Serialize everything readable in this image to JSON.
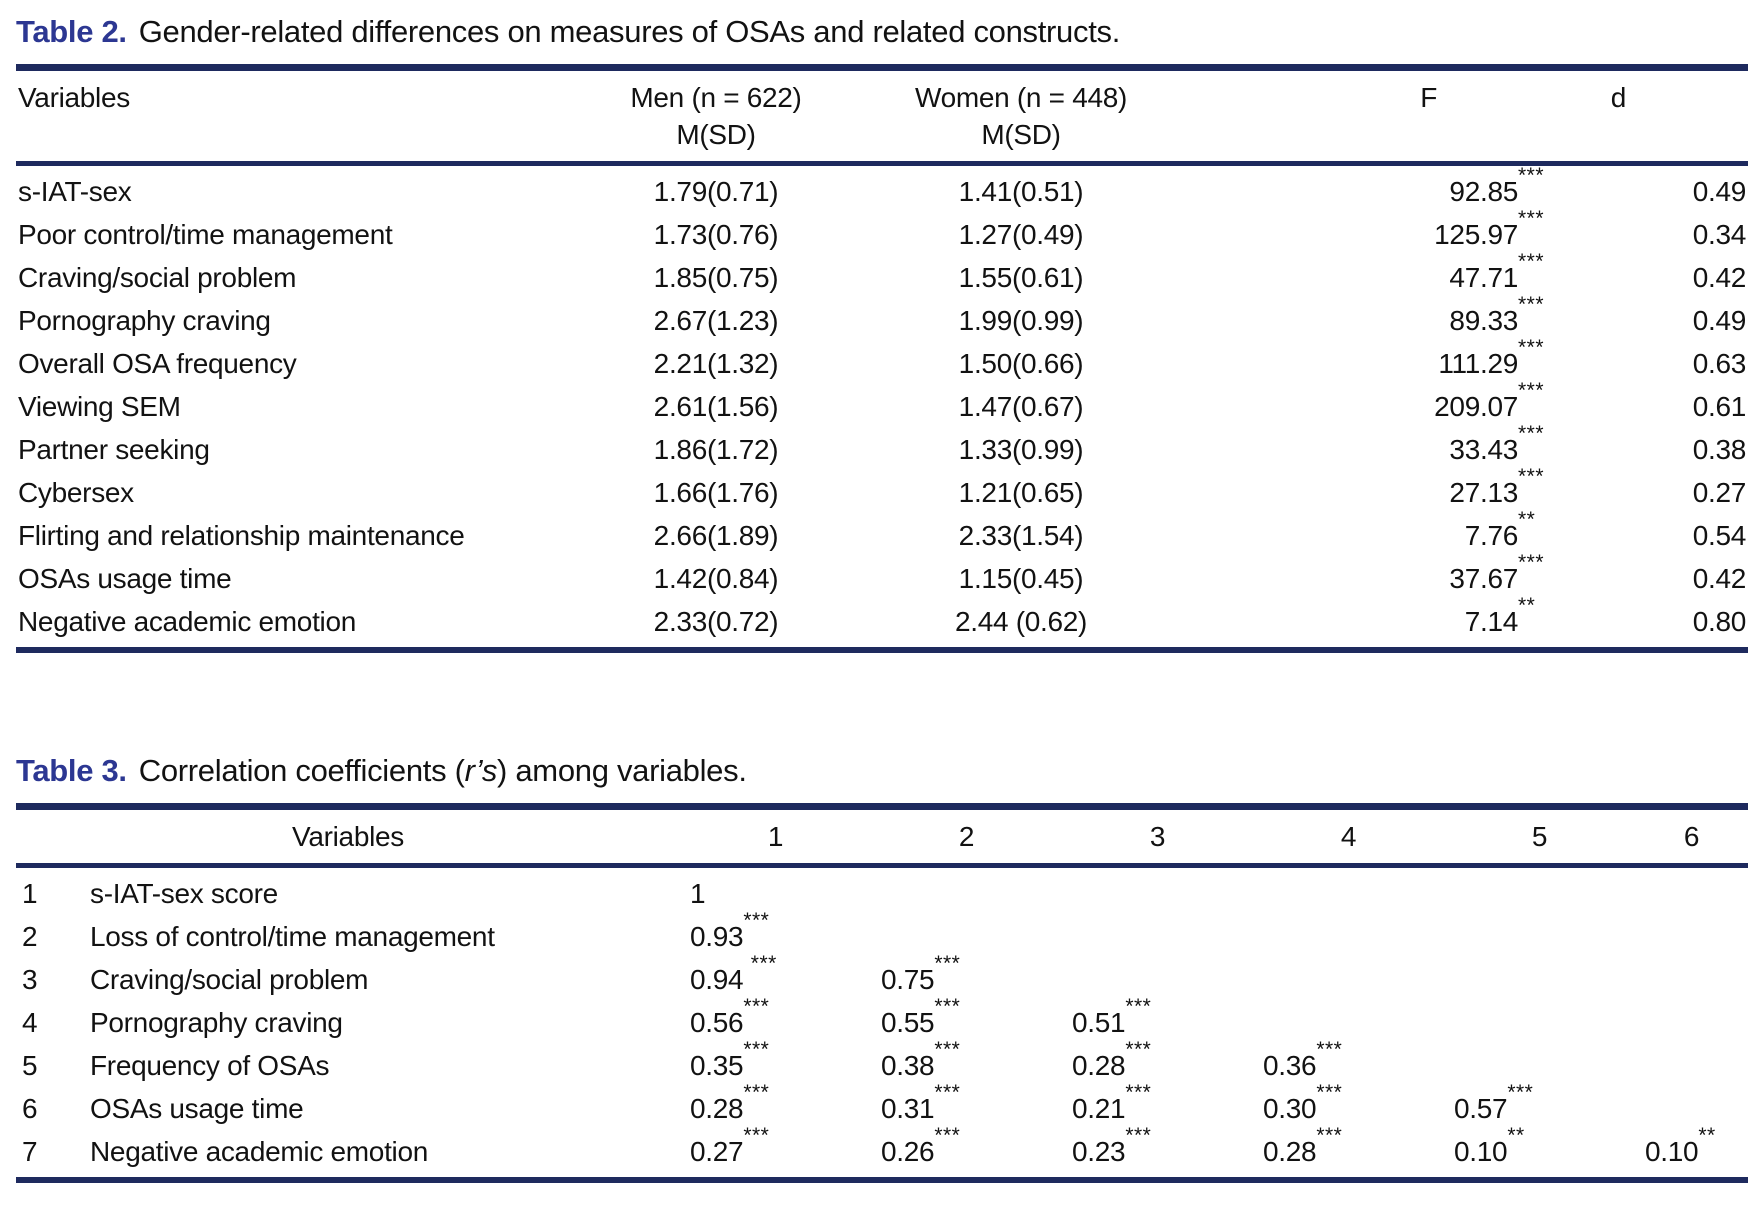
{
  "page": {
    "background": "#ffffff",
    "text_color": "#121212",
    "accent_blue": "#2c3792",
    "rule_blue": "#1e2a5e"
  },
  "table2": {
    "label": "Table 2.",
    "title": "Gender-related differences on measures of OSAs and related constructs.",
    "headers": {
      "variables": "Variables",
      "men_line1": "Men (n = 622)",
      "men_line2": "M(SD)",
      "women_line1": "Women (n = 448)",
      "women_line2": "M(SD)",
      "f": "F",
      "d": "d"
    },
    "rows": [
      {
        "variable": "s-IAT-sex",
        "men": "1.79(0.71)",
        "women": "1.41(0.51)",
        "f": "92.85",
        "f_sig": "***",
        "d": "0.49"
      },
      {
        "variable": "Poor control/time management",
        "men": "1.73(0.76)",
        "women": "1.27(0.49)",
        "f": "125.97",
        "f_sig": "***",
        "d": "0.34"
      },
      {
        "variable": "Craving/social problem",
        "men": "1.85(0.75)",
        "women": "1.55(0.61)",
        "f": "47.71",
        "f_sig": "***",
        "d": "0.42"
      },
      {
        "variable": "Pornography craving",
        "men": "2.67(1.23)",
        "women": "1.99(0.99)",
        "f": "89.33",
        "f_sig": "***",
        "d": "0.49"
      },
      {
        "variable": "Overall OSA frequency",
        "men": "2.21(1.32)",
        "women": "1.50(0.66)",
        "f": "111.29",
        "f_sig": "***",
        "d": "0.63"
      },
      {
        "variable": "Viewing SEM",
        "men": "2.61(1.56)",
        "women": "1.47(0.67)",
        "f": "209.07",
        "f_sig": "***",
        "d": "0.61"
      },
      {
        "variable": "Partner seeking",
        "men": "1.86(1.72)",
        "women": "1.33(0.99)",
        "f": "33.43",
        "f_sig": "***",
        "d": "0.38"
      },
      {
        "variable": "Cybersex",
        "men": "1.66(1.76)",
        "women": "1.21(0.65)",
        "f": "27.13",
        "f_sig": "***",
        "d": "0.27"
      },
      {
        "variable": "Flirting and relationship maintenance",
        "men": "2.66(1.89)",
        "women": "2.33(1.54)",
        "f": "7.76",
        "f_sig": "**",
        "d": "0.54"
      },
      {
        "variable": "OSAs usage time",
        "men": "1.42(0.84)",
        "women": "1.15(0.45)",
        "f": "37.67",
        "f_sig": "***",
        "d": "0.42"
      },
      {
        "variable": "Negative academic emotion",
        "men": "2.33(0.72)",
        "women": "2.44 (0.62)",
        "f": "7.14",
        "f_sig": "**",
        "d": "0.80"
      }
    ]
  },
  "table3": {
    "label": "Table 3.",
    "title_pre": "Correlation coefficients (",
    "title_ital": "r’s",
    "title_post": ") among variables.",
    "headers": {
      "variables": "Variables",
      "cols": [
        "1",
        "2",
        "3",
        "4",
        "5",
        "6"
      ]
    },
    "rows": [
      {
        "num": "1",
        "variable": "s-IAT-sex score",
        "cells": [
          {
            "v": "1",
            "sig": ""
          },
          null,
          null,
          null,
          null,
          null
        ]
      },
      {
        "num": "2",
        "variable": "Loss of control/time management",
        "cells": [
          {
            "v": "0.93",
            "sig": "***"
          },
          null,
          null,
          null,
          null,
          null
        ]
      },
      {
        "num": "3",
        "variable": "Craving/social problem",
        "cells": [
          {
            "v": "0.94 ",
            "sig": "***"
          },
          {
            "v": "0.75",
            "sig": "***"
          },
          null,
          null,
          null,
          null
        ]
      },
      {
        "num": "4",
        "variable": "Pornography craving",
        "cells": [
          {
            "v": "0.56",
            "sig": "***"
          },
          {
            "v": "0.55",
            "sig": "***"
          },
          {
            "v": "0.51",
            "sig": "***"
          },
          null,
          null,
          null
        ]
      },
      {
        "num": "5",
        "variable": "Frequency of OSAs",
        "cells": [
          {
            "v": "0.35",
            "sig": "***"
          },
          {
            "v": "0.38",
            "sig": "***"
          },
          {
            "v": "0.28",
            "sig": "***"
          },
          {
            "v": "0.36",
            "sig": "***"
          },
          null,
          null
        ]
      },
      {
        "num": "6",
        "variable": "OSAs usage time",
        "cells": [
          {
            "v": "0.28",
            "sig": "***"
          },
          {
            "v": "0.31",
            "sig": "***"
          },
          {
            "v": "0.21",
            "sig": "***"
          },
          {
            "v": "0.30",
            "sig": "***"
          },
          {
            "v": "0.57",
            "sig": "***"
          },
          null
        ]
      },
      {
        "num": "7",
        "variable": "Negative academic emotion",
        "cells": [
          {
            "v": "0.27",
            "sig": "***"
          },
          {
            "v": "0.26",
            "sig": "***"
          },
          {
            "v": "0.23",
            "sig": "***"
          },
          {
            "v": "0.28",
            "sig": "***"
          },
          {
            "v": "0.10",
            "sig": "**"
          },
          {
            "v": "0.10",
            "sig": "**"
          }
        ]
      }
    ]
  }
}
